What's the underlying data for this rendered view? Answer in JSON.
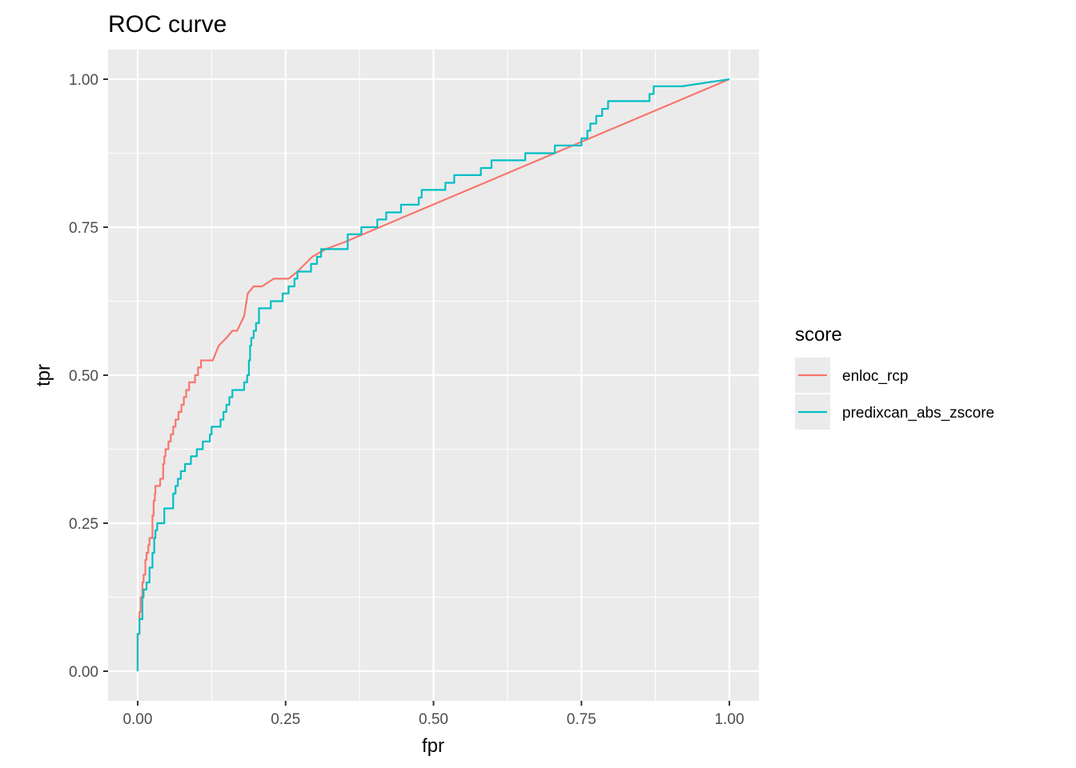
{
  "chart_data": {
    "type": "line",
    "title": "ROC curve",
    "xlabel": "fpr",
    "ylabel": "tpr",
    "xlim": [
      -0.05,
      1.05
    ],
    "ylim": [
      -0.05,
      1.05
    ],
    "x_ticks": [
      0.0,
      0.25,
      0.5,
      0.75,
      1.0
    ],
    "y_ticks": [
      0.0,
      0.25,
      0.5,
      0.75,
      1.0
    ],
    "x_tick_labels": [
      "0.00",
      "0.25",
      "0.50",
      "0.75",
      "1.00"
    ],
    "y_tick_labels": [
      "0.00",
      "0.25",
      "0.50",
      "0.75",
      "1.00"
    ],
    "grid": true,
    "legend": {
      "title": "score",
      "position": "right"
    },
    "series": [
      {
        "name": "enloc_rcp",
        "color": "#F8766D",
        "points": [
          [
            0.0,
            0.0
          ],
          [
            0.0,
            0.063
          ],
          [
            0.003,
            0.063
          ],
          [
            0.003,
            0.1
          ],
          [
            0.005,
            0.1
          ],
          [
            0.005,
            0.125
          ],
          [
            0.008,
            0.125
          ],
          [
            0.008,
            0.15
          ],
          [
            0.01,
            0.15
          ],
          [
            0.01,
            0.163
          ],
          [
            0.013,
            0.163
          ],
          [
            0.013,
            0.188
          ],
          [
            0.015,
            0.188
          ],
          [
            0.015,
            0.2
          ],
          [
            0.018,
            0.2
          ],
          [
            0.018,
            0.213
          ],
          [
            0.02,
            0.213
          ],
          [
            0.02,
            0.225
          ],
          [
            0.025,
            0.225
          ],
          [
            0.025,
            0.263
          ],
          [
            0.027,
            0.263
          ],
          [
            0.027,
            0.288
          ],
          [
            0.029,
            0.288
          ],
          [
            0.029,
            0.3
          ],
          [
            0.03,
            0.3
          ],
          [
            0.03,
            0.313
          ],
          [
            0.038,
            0.313
          ],
          [
            0.038,
            0.325
          ],
          [
            0.043,
            0.325
          ],
          [
            0.043,
            0.35
          ],
          [
            0.045,
            0.35
          ],
          [
            0.045,
            0.363
          ],
          [
            0.047,
            0.363
          ],
          [
            0.047,
            0.375
          ],
          [
            0.052,
            0.375
          ],
          [
            0.052,
            0.388
          ],
          [
            0.056,
            0.388
          ],
          [
            0.056,
            0.4
          ],
          [
            0.06,
            0.4
          ],
          [
            0.06,
            0.413
          ],
          [
            0.064,
            0.413
          ],
          [
            0.064,
            0.425
          ],
          [
            0.069,
            0.425
          ],
          [
            0.069,
            0.438
          ],
          [
            0.074,
            0.438
          ],
          [
            0.074,
            0.45
          ],
          [
            0.078,
            0.45
          ],
          [
            0.078,
            0.463
          ],
          [
            0.082,
            0.463
          ],
          [
            0.082,
            0.475
          ],
          [
            0.087,
            0.475
          ],
          [
            0.087,
            0.488
          ],
          [
            0.097,
            0.488
          ],
          [
            0.097,
            0.5
          ],
          [
            0.102,
            0.5
          ],
          [
            0.102,
            0.513
          ],
          [
            0.107,
            0.513
          ],
          [
            0.107,
            0.525
          ],
          [
            0.127,
            0.525
          ],
          [
            0.137,
            0.55
          ],
          [
            0.15,
            0.563
          ],
          [
            0.16,
            0.575
          ],
          [
            0.168,
            0.575
          ],
          [
            0.18,
            0.6
          ],
          [
            0.186,
            0.638
          ],
          [
            0.196,
            0.65
          ],
          [
            0.21,
            0.65
          ],
          [
            0.23,
            0.663
          ],
          [
            0.255,
            0.663
          ],
          [
            0.27,
            0.675
          ],
          [
            0.295,
            0.7
          ],
          [
            0.318,
            0.713
          ],
          [
            0.35,
            0.725
          ],
          [
            1.0,
            1.0
          ]
        ]
      },
      {
        "name": "predixcan_abs_zscore",
        "color": "#00BFC4",
        "points": [
          [
            0.0,
            0.0
          ],
          [
            0.0,
            0.063
          ],
          [
            0.003,
            0.063
          ],
          [
            0.003,
            0.088
          ],
          [
            0.008,
            0.088
          ],
          [
            0.008,
            0.125
          ],
          [
            0.01,
            0.125
          ],
          [
            0.01,
            0.138
          ],
          [
            0.015,
            0.138
          ],
          [
            0.015,
            0.15
          ],
          [
            0.02,
            0.15
          ],
          [
            0.02,
            0.175
          ],
          [
            0.025,
            0.175
          ],
          [
            0.025,
            0.2
          ],
          [
            0.028,
            0.2
          ],
          [
            0.028,
            0.225
          ],
          [
            0.03,
            0.225
          ],
          [
            0.03,
            0.238
          ],
          [
            0.033,
            0.238
          ],
          [
            0.033,
            0.25
          ],
          [
            0.045,
            0.25
          ],
          [
            0.045,
            0.275
          ],
          [
            0.06,
            0.275
          ],
          [
            0.06,
            0.3
          ],
          [
            0.064,
            0.3
          ],
          [
            0.064,
            0.313
          ],
          [
            0.068,
            0.313
          ],
          [
            0.068,
            0.325
          ],
          [
            0.073,
            0.325
          ],
          [
            0.073,
            0.338
          ],
          [
            0.08,
            0.338
          ],
          [
            0.08,
            0.35
          ],
          [
            0.09,
            0.35
          ],
          [
            0.09,
            0.363
          ],
          [
            0.1,
            0.363
          ],
          [
            0.1,
            0.375
          ],
          [
            0.11,
            0.375
          ],
          [
            0.11,
            0.388
          ],
          [
            0.122,
            0.388
          ],
          [
            0.122,
            0.4
          ],
          [
            0.125,
            0.4
          ],
          [
            0.125,
            0.413
          ],
          [
            0.14,
            0.413
          ],
          [
            0.14,
            0.425
          ],
          [
            0.145,
            0.425
          ],
          [
            0.145,
            0.438
          ],
          [
            0.15,
            0.438
          ],
          [
            0.15,
            0.45
          ],
          [
            0.155,
            0.45
          ],
          [
            0.155,
            0.463
          ],
          [
            0.16,
            0.463
          ],
          [
            0.16,
            0.475
          ],
          [
            0.18,
            0.475
          ],
          [
            0.18,
            0.488
          ],
          [
            0.185,
            0.488
          ],
          [
            0.185,
            0.5
          ],
          [
            0.188,
            0.5
          ],
          [
            0.188,
            0.525
          ],
          [
            0.19,
            0.525
          ],
          [
            0.19,
            0.55
          ],
          [
            0.192,
            0.55
          ],
          [
            0.192,
            0.563
          ],
          [
            0.196,
            0.563
          ],
          [
            0.196,
            0.575
          ],
          [
            0.2,
            0.575
          ],
          [
            0.2,
            0.588
          ],
          [
            0.205,
            0.588
          ],
          [
            0.205,
            0.613
          ],
          [
            0.225,
            0.613
          ],
          [
            0.225,
            0.625
          ],
          [
            0.245,
            0.625
          ],
          [
            0.245,
            0.638
          ],
          [
            0.255,
            0.638
          ],
          [
            0.255,
            0.65
          ],
          [
            0.265,
            0.65
          ],
          [
            0.265,
            0.663
          ],
          [
            0.27,
            0.663
          ],
          [
            0.27,
            0.675
          ],
          [
            0.293,
            0.675
          ],
          [
            0.293,
            0.688
          ],
          [
            0.303,
            0.688
          ],
          [
            0.303,
            0.7
          ],
          [
            0.31,
            0.7
          ],
          [
            0.31,
            0.713
          ],
          [
            0.355,
            0.713
          ],
          [
            0.355,
            0.738
          ],
          [
            0.378,
            0.738
          ],
          [
            0.378,
            0.75
          ],
          [
            0.405,
            0.75
          ],
          [
            0.405,
            0.763
          ],
          [
            0.42,
            0.763
          ],
          [
            0.42,
            0.775
          ],
          [
            0.445,
            0.775
          ],
          [
            0.445,
            0.788
          ],
          [
            0.475,
            0.788
          ],
          [
            0.475,
            0.8
          ],
          [
            0.48,
            0.8
          ],
          [
            0.48,
            0.813
          ],
          [
            0.52,
            0.813
          ],
          [
            0.52,
            0.825
          ],
          [
            0.535,
            0.825
          ],
          [
            0.535,
            0.838
          ],
          [
            0.58,
            0.838
          ],
          [
            0.58,
            0.85
          ],
          [
            0.598,
            0.85
          ],
          [
            0.598,
            0.863
          ],
          [
            0.655,
            0.863
          ],
          [
            0.655,
            0.875
          ],
          [
            0.705,
            0.875
          ],
          [
            0.705,
            0.888
          ],
          [
            0.75,
            0.888
          ],
          [
            0.75,
            0.9
          ],
          [
            0.76,
            0.9
          ],
          [
            0.76,
            0.913
          ],
          [
            0.765,
            0.913
          ],
          [
            0.765,
            0.925
          ],
          [
            0.775,
            0.925
          ],
          [
            0.775,
            0.938
          ],
          [
            0.785,
            0.938
          ],
          [
            0.785,
            0.95
          ],
          [
            0.795,
            0.95
          ],
          [
            0.795,
            0.963
          ],
          [
            0.865,
            0.963
          ],
          [
            0.865,
            0.975
          ],
          [
            0.872,
            0.975
          ],
          [
            0.872,
            0.988
          ],
          [
            0.92,
            0.988
          ],
          [
            1.0,
            1.0
          ]
        ]
      }
    ]
  }
}
